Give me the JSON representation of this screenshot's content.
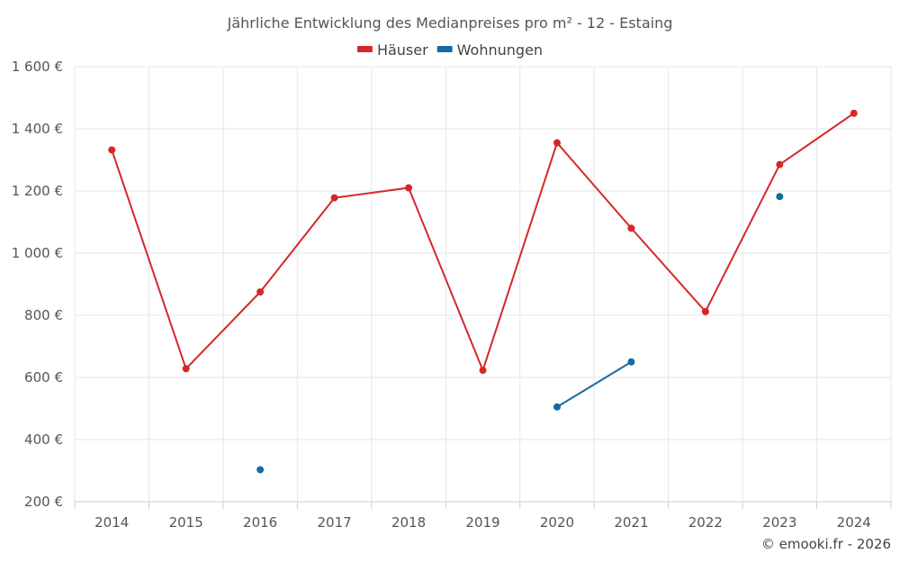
{
  "chart_data": {
    "type": "line",
    "title": "Jährliche Entwicklung des Medianpreises pro m² - 12 - Estaing",
    "categories": [
      "2014",
      "2015",
      "2016",
      "2017",
      "2018",
      "2019",
      "2020",
      "2021",
      "2022",
      "2023",
      "2024"
    ],
    "ylim": [
      200,
      1600
    ],
    "yticks": [
      200,
      400,
      600,
      800,
      1000,
      1200,
      1400,
      1600
    ],
    "ytick_labels": [
      "200 €",
      "400 €",
      "600 €",
      "800 €",
      "1 000 €",
      "1 200 €",
      "1 400 €",
      "1 600 €"
    ],
    "grid": true,
    "legend_position": "top-center",
    "series": [
      {
        "name": "Häuser",
        "color": "#d62728",
        "values": [
          1332,
          628,
          875,
          1178,
          1210,
          623,
          1355,
          1080,
          812,
          1285,
          1450
        ]
      },
      {
        "name": "Wohnungen",
        "color": "#1a6aa0",
        "values": [
          null,
          null,
          303,
          null,
          null,
          null,
          505,
          650,
          null,
          1182,
          null
        ]
      }
    ]
  },
  "credit": "© emooki.fr - 2026"
}
